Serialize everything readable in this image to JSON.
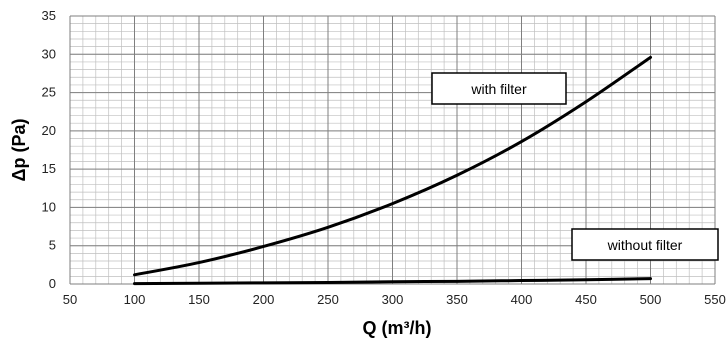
{
  "chart_data": {
    "type": "line",
    "xlabel": "Q (m³/h)",
    "ylabel": "Δp (Pa)",
    "xlim": [
      50,
      550
    ],
    "ylim": [
      0,
      35
    ],
    "x_ticks": [
      50,
      100,
      150,
      200,
      250,
      300,
      350,
      400,
      450,
      500,
      550
    ],
    "y_ticks": [
      0,
      5,
      10,
      15,
      20,
      25,
      30,
      35
    ],
    "grid": true,
    "minor_grid": true,
    "series": [
      {
        "name": "with filter",
        "x": [
          100,
          150,
          200,
          250,
          300,
          350,
          400,
          450,
          500
        ],
        "y": [
          1.2,
          2.8,
          4.9,
          7.4,
          10.5,
          14.2,
          18.6,
          23.8,
          29.6
        ]
      },
      {
        "name": "without filter",
        "x": [
          100,
          150,
          200,
          250,
          300,
          350,
          400,
          450,
          500
        ],
        "y": [
          0.05,
          0.1,
          0.15,
          0.2,
          0.3,
          0.35,
          0.45,
          0.55,
          0.7
        ]
      }
    ],
    "colors": {
      "line": "#000000",
      "major_grid": "#7f7f7f",
      "minor_grid": "#bfbfbf"
    }
  }
}
